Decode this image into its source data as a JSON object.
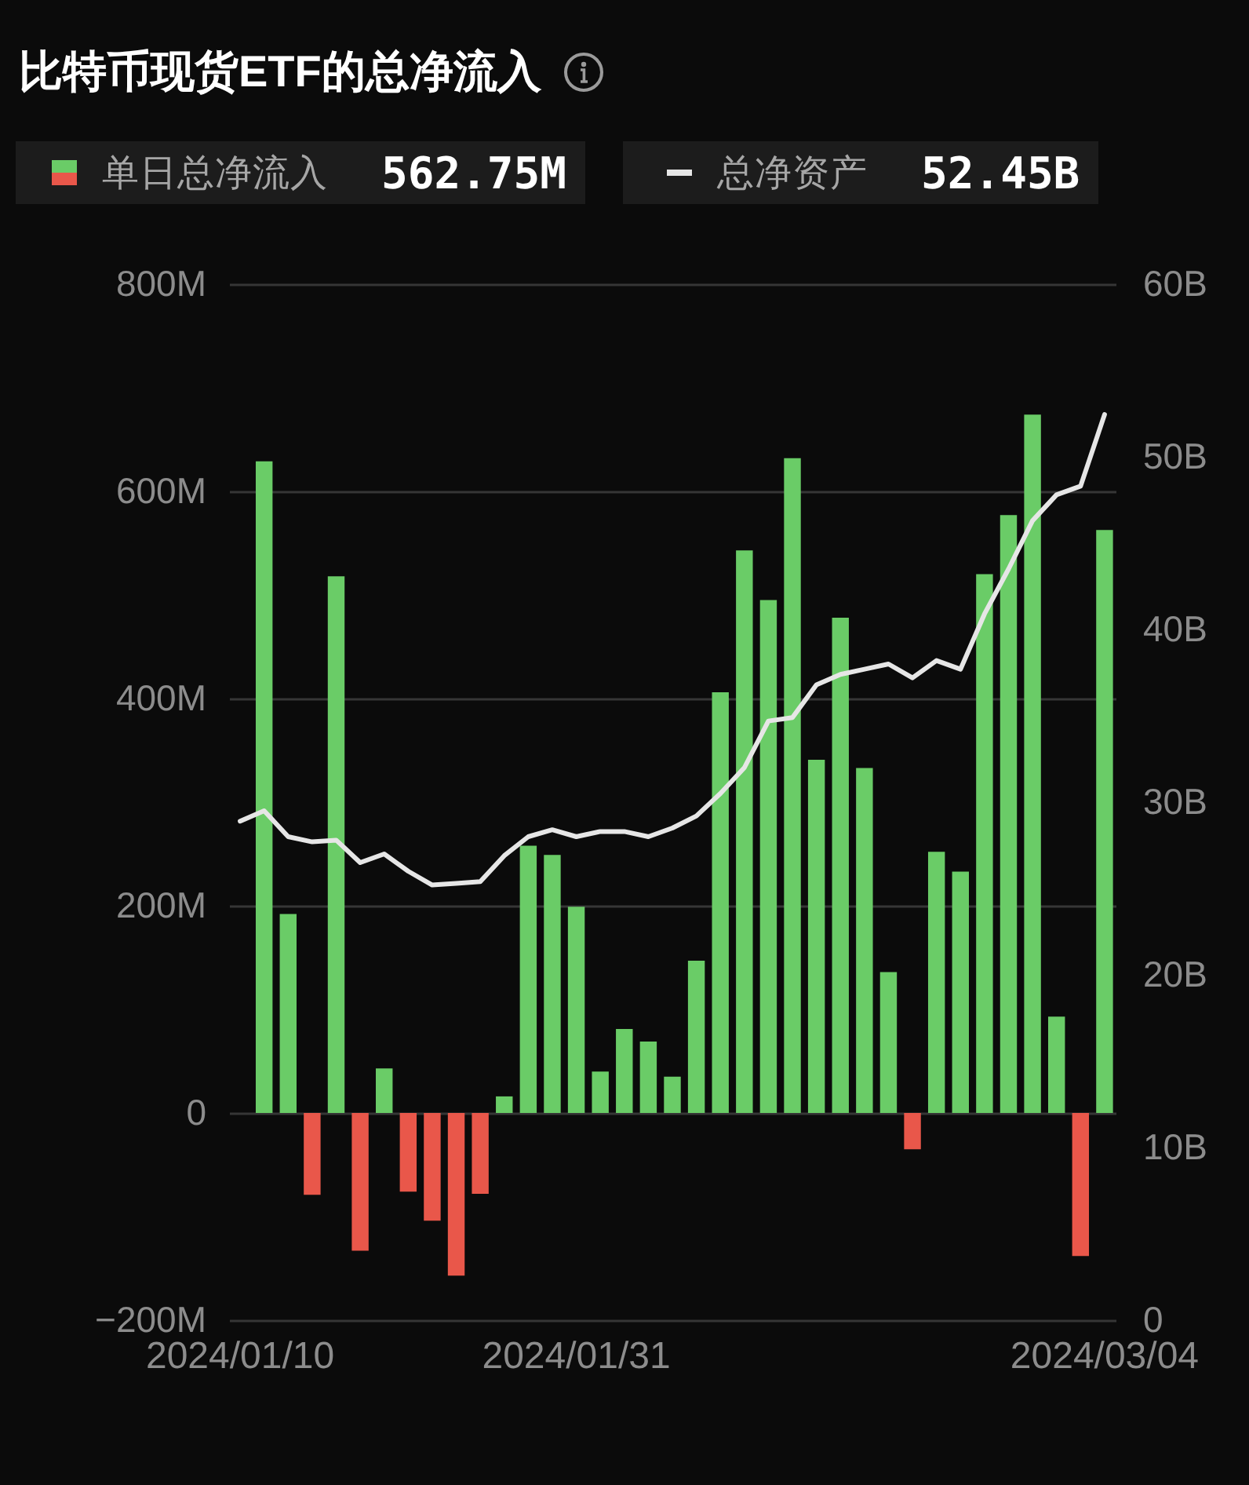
{
  "chart_data": {
    "type": "bar",
    "title": "比特币现货ETF的总净流入",
    "categories": [
      "2024/01/10",
      null,
      null,
      null,
      null,
      null,
      null,
      null,
      null,
      null,
      null,
      null,
      null,
      null,
      "2024/01/31",
      null,
      null,
      null,
      null,
      null,
      null,
      null,
      null,
      null,
      null,
      null,
      null,
      null,
      null,
      null,
      null,
      null,
      null,
      null,
      null,
      null,
      "2024/03/04"
    ],
    "series": [
      {
        "name": "单日总净流入",
        "colors": [
          null,
          "#6acc67",
          "#6acc67",
          "#e9574a",
          "#6acc67",
          "#e9574a",
          "#6acc67",
          "#e9574a",
          "#e9574a",
          "#e9574a",
          "#e9574a",
          "#6acc67",
          "#6acc67",
          "#6acc67",
          "#6acc67",
          "#6acc67",
          "#6acc67",
          "#6acc67",
          "#6acc67",
          "#6acc67",
          "#6acc67",
          "#6acc67",
          "#6acc67",
          "#6acc67",
          "#6acc67",
          "#6acc67",
          "#6acc67",
          "#6acc67",
          "#e9574a",
          "#6acc67",
          "#6acc67",
          "#6acc67",
          "#6acc67",
          "#6acc67",
          "#6acc67",
          "#e9574a",
          "#6acc67"
        ],
        "values": [
          null,
          629,
          192,
          -79,
          518,
          -133,
          43,
          -76,
          -104,
          -157,
          -78,
          16,
          258,
          249,
          199,
          40,
          81,
          69,
          35,
          147,
          406,
          543,
          495,
          632,
          341,
          478,
          333,
          136,
          -35,
          252,
          233,
          520,
          577,
          674,
          93,
          -138,
          562.75
        ]
      },
      {
        "name": "总净资产",
        "type": "line",
        "axis": "y2",
        "color": "#e6e6e6",
        "values": [
          28.9,
          29.5,
          28.0,
          27.7,
          27.8,
          26.5,
          27.0,
          26.0,
          25.2,
          25.3,
          25.4,
          26.9,
          28.0,
          28.4,
          28.0,
          28.3,
          28.3,
          28.0,
          28.5,
          29.2,
          30.5,
          32.0,
          34.7,
          34.9,
          36.8,
          37.4,
          37.7,
          38.0,
          37.2,
          38.2,
          37.7,
          40.9,
          43.5,
          46.3,
          47.8,
          48.3,
          52.45
        ]
      }
    ],
    "ylim": [
      -200,
      800
    ],
    "yticks": [
      {
        "value": -200,
        "label": "−200M"
      },
      0,
      {
        "value": 200,
        "label": "200M"
      },
      {
        "value": 400,
        "label": "400M"
      },
      {
        "value": 600,
        "label": "600M"
      },
      {
        "value": 800,
        "label": "800M"
      }
    ],
    "y2lim": [
      0,
      60
    ],
    "y2ticks": [
      0,
      {
        "value": 10,
        "label": "10B"
      },
      {
        "value": 20,
        "label": "20B"
      },
      {
        "value": 30,
        "label": "30B"
      },
      {
        "value": 40,
        "label": "40B"
      },
      {
        "value": 50,
        "label": "50B"
      },
      {
        "value": 60,
        "label": "60B"
      }
    ],
    "grid": "y",
    "legend": "top left",
    "annotations": [
      "562.75M",
      "52.45B"
    ]
  }
}
